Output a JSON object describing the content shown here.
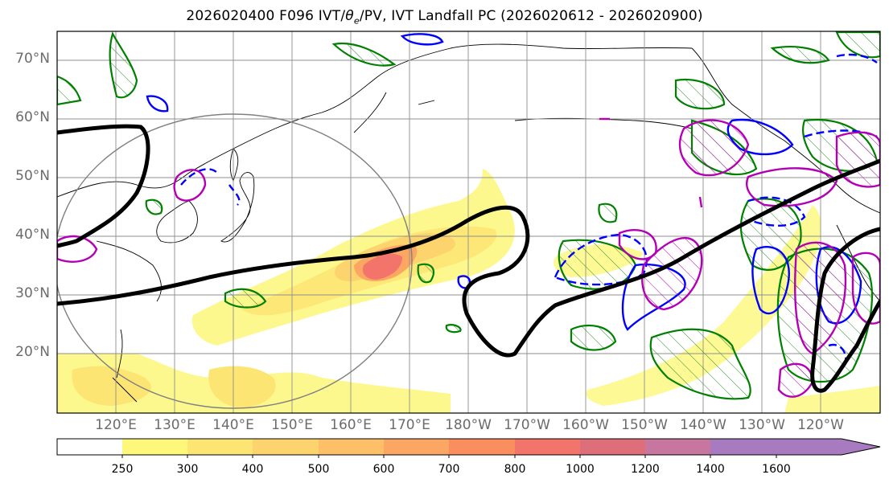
{
  "title": "2026020400 F096 IVT/θe/PV, IVT Landfall PC (2026020612 - 2026020900)",
  "title_parts": {
    "prefix": "2026020400 F096 IVT/",
    "theta": "θ",
    "theta_sub": "e",
    "suffix": "/PV, IVT Landfall PC (2026020612 - 2026020900)"
  },
  "map": {
    "projection": "PlateCarree",
    "lon_range": [
      110,
      250
    ],
    "lat_range": [
      10,
      75
    ],
    "lat_labels": [
      "70°N",
      "60°N",
      "50°N",
      "40°N",
      "30°N",
      "20°N"
    ],
    "lon_labels": [
      "120°E",
      "130°E",
      "140°E",
      "150°E",
      "160°E",
      "170°E",
      "180°W",
      "170°W",
      "160°W",
      "150°W",
      "140°W",
      "130°W",
      "120°W"
    ],
    "gridlines": true,
    "colors": {
      "ivt_contour_ring": "#808080",
      "theta_e_line": "#000000",
      "pv_positive": "#008000",
      "pv_blue": "#0000ff",
      "pv_magenta": "#b400b4",
      "coastline": "#000000"
    }
  },
  "colorbar": {
    "ticks": [
      "250",
      "300",
      "400",
      "500",
      "600",
      "700",
      "800",
      "1000",
      "1200",
      "1400",
      "1600"
    ],
    "colors": [
      "#ffffff",
      "#fdf77a",
      "#fde574",
      "#fdd36e",
      "#fdbf68",
      "#fca663",
      "#fb8e5f",
      "#f2746a",
      "#de6f7a",
      "#c776a0",
      "#a87ac0"
    ],
    "extend": "max"
  }
}
